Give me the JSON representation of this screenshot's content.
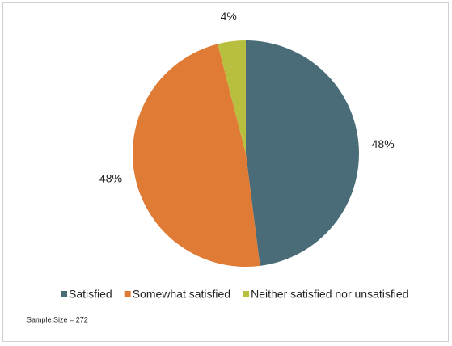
{
  "chart_data": {
    "type": "pie",
    "categories": [
      "Satisfied",
      "Somewhat satisfied",
      "Neither satisfied nor unsatisfied"
    ],
    "values": [
      48,
      48,
      4
    ],
    "value_labels": [
      "48%",
      "48%",
      "4%"
    ],
    "colors": [
      "#4a6b78",
      "#e07b35",
      "#b8bf3e"
    ],
    "legend": "bottom",
    "note": "Sample Size = 272"
  }
}
